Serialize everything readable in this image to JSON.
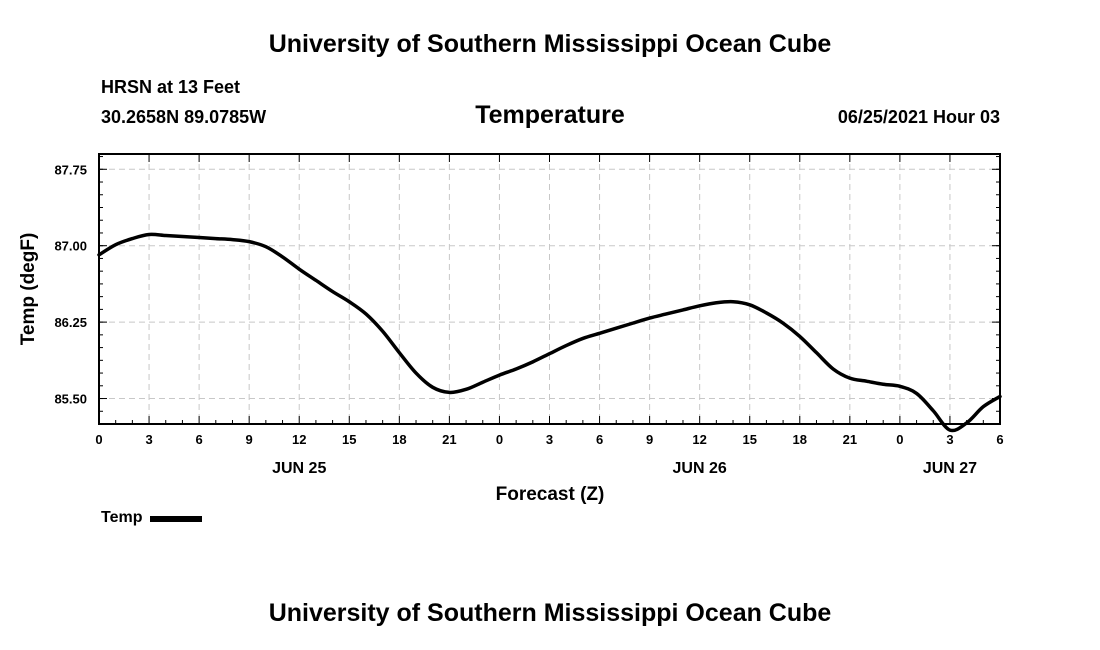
{
  "header": {
    "org_title": "University of Southern Mississippi Ocean Cube",
    "station": "HRSN at 13 Feet",
    "coords": "30.2658N  89.0785W",
    "datetime": "06/25/2021 Hour 03"
  },
  "footer": {
    "org_title": "University of Southern Mississippi Ocean Cube"
  },
  "chart_data": {
    "type": "line",
    "title": "Temperature",
    "xlabel": "Forecast (Z)",
    "ylabel": "Temp (degF)",
    "xlim": [
      0,
      54
    ],
    "ylim": [
      85.25,
      87.9
    ],
    "grid": true,
    "x_ticks": [
      0,
      3,
      6,
      9,
      12,
      15,
      18,
      21,
      24,
      27,
      30,
      33,
      36,
      39,
      42,
      45,
      48,
      51,
      54
    ],
    "x_tick_labels": [
      "0",
      "3",
      "6",
      "9",
      "12",
      "15",
      "18",
      "21",
      "0",
      "3",
      "6",
      "9",
      "12",
      "15",
      "18",
      "21",
      "0",
      "3",
      "6"
    ],
    "date_labels": [
      {
        "x": 12,
        "label": "JUN 25"
      },
      {
        "x": 36,
        "label": "JUN 26"
      },
      {
        "x": 51,
        "label": "JUN 27"
      }
    ],
    "y_ticks": [
      85.5,
      86.25,
      87.0,
      87.75
    ],
    "y_tick_labels": [
      "85.50",
      "86.25",
      "87.00",
      "87.75"
    ],
    "series": [
      {
        "name": "Temp",
        "color": "#000000",
        "x": [
          0,
          1,
          2,
          3,
          4,
          5,
          6,
          7,
          8,
          9,
          10,
          11,
          12,
          13,
          14,
          15,
          16,
          17,
          18,
          19,
          20,
          21,
          22,
          23,
          24,
          25,
          26,
          27,
          28,
          29,
          30,
          31,
          32,
          33,
          34,
          35,
          36,
          37,
          38,
          39,
          40,
          41,
          42,
          43,
          44,
          45,
          46,
          47,
          48,
          49,
          50,
          51,
          52,
          53,
          54
        ],
        "values": [
          86.91,
          87.01,
          87.07,
          87.11,
          87.1,
          87.09,
          87.08,
          87.07,
          87.06,
          87.04,
          86.99,
          86.89,
          86.77,
          86.66,
          86.55,
          86.45,
          86.33,
          86.16,
          85.95,
          85.75,
          85.61,
          85.56,
          85.59,
          85.66,
          85.73,
          85.79,
          85.86,
          85.94,
          86.02,
          86.09,
          86.14,
          86.19,
          86.24,
          86.29,
          86.33,
          86.37,
          86.41,
          86.44,
          86.45,
          86.42,
          86.34,
          86.24,
          86.11,
          85.95,
          85.79,
          85.7,
          85.67,
          85.64,
          85.62,
          85.55,
          85.38,
          85.19,
          85.26,
          85.42,
          85.52
        ]
      }
    ],
    "legend": {
      "position": "bottom-left",
      "label": "Temp"
    }
  }
}
